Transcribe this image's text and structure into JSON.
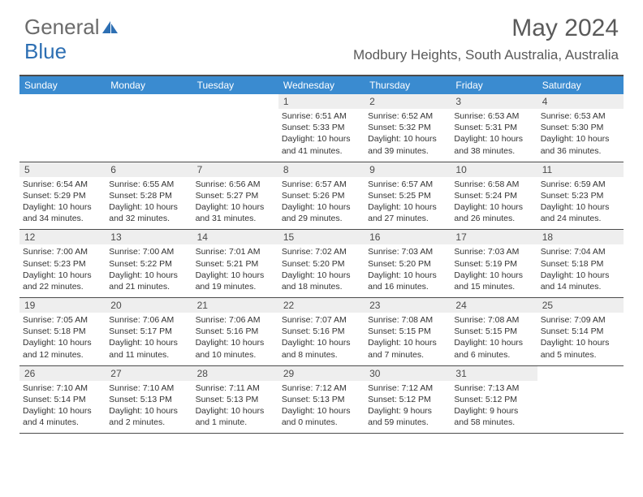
{
  "logo": {
    "text1": "General",
    "text2": "Blue"
  },
  "title": "May 2024",
  "location": "Modbury Heights, South Australia, Australia",
  "colors": {
    "header_band": "#3a8bd0",
    "daynum_bg": "#eeeeee",
    "rule": "#4b4b4b",
    "text": "#333333",
    "title_text": "#5a5a5a",
    "logo_text": "#6b6b6b",
    "logo_accent": "#2d6fb3"
  },
  "day_headers": [
    "Sunday",
    "Monday",
    "Tuesday",
    "Wednesday",
    "Thursday",
    "Friday",
    "Saturday"
  ],
  "weeks": [
    [
      {
        "n": "",
        "sunrise": "",
        "sunset": "",
        "daylight": ""
      },
      {
        "n": "",
        "sunrise": "",
        "sunset": "",
        "daylight": ""
      },
      {
        "n": "",
        "sunrise": "",
        "sunset": "",
        "daylight": ""
      },
      {
        "n": "1",
        "sunrise": "Sunrise: 6:51 AM",
        "sunset": "Sunset: 5:33 PM",
        "daylight": "Daylight: 10 hours and 41 minutes."
      },
      {
        "n": "2",
        "sunrise": "Sunrise: 6:52 AM",
        "sunset": "Sunset: 5:32 PM",
        "daylight": "Daylight: 10 hours and 39 minutes."
      },
      {
        "n": "3",
        "sunrise": "Sunrise: 6:53 AM",
        "sunset": "Sunset: 5:31 PM",
        "daylight": "Daylight: 10 hours and 38 minutes."
      },
      {
        "n": "4",
        "sunrise": "Sunrise: 6:53 AM",
        "sunset": "Sunset: 5:30 PM",
        "daylight": "Daylight: 10 hours and 36 minutes."
      }
    ],
    [
      {
        "n": "5",
        "sunrise": "Sunrise: 6:54 AM",
        "sunset": "Sunset: 5:29 PM",
        "daylight": "Daylight: 10 hours and 34 minutes."
      },
      {
        "n": "6",
        "sunrise": "Sunrise: 6:55 AM",
        "sunset": "Sunset: 5:28 PM",
        "daylight": "Daylight: 10 hours and 32 minutes."
      },
      {
        "n": "7",
        "sunrise": "Sunrise: 6:56 AM",
        "sunset": "Sunset: 5:27 PM",
        "daylight": "Daylight: 10 hours and 31 minutes."
      },
      {
        "n": "8",
        "sunrise": "Sunrise: 6:57 AM",
        "sunset": "Sunset: 5:26 PM",
        "daylight": "Daylight: 10 hours and 29 minutes."
      },
      {
        "n": "9",
        "sunrise": "Sunrise: 6:57 AM",
        "sunset": "Sunset: 5:25 PM",
        "daylight": "Daylight: 10 hours and 27 minutes."
      },
      {
        "n": "10",
        "sunrise": "Sunrise: 6:58 AM",
        "sunset": "Sunset: 5:24 PM",
        "daylight": "Daylight: 10 hours and 26 minutes."
      },
      {
        "n": "11",
        "sunrise": "Sunrise: 6:59 AM",
        "sunset": "Sunset: 5:23 PM",
        "daylight": "Daylight: 10 hours and 24 minutes."
      }
    ],
    [
      {
        "n": "12",
        "sunrise": "Sunrise: 7:00 AM",
        "sunset": "Sunset: 5:23 PM",
        "daylight": "Daylight: 10 hours and 22 minutes."
      },
      {
        "n": "13",
        "sunrise": "Sunrise: 7:00 AM",
        "sunset": "Sunset: 5:22 PM",
        "daylight": "Daylight: 10 hours and 21 minutes."
      },
      {
        "n": "14",
        "sunrise": "Sunrise: 7:01 AM",
        "sunset": "Sunset: 5:21 PM",
        "daylight": "Daylight: 10 hours and 19 minutes."
      },
      {
        "n": "15",
        "sunrise": "Sunrise: 7:02 AM",
        "sunset": "Sunset: 5:20 PM",
        "daylight": "Daylight: 10 hours and 18 minutes."
      },
      {
        "n": "16",
        "sunrise": "Sunrise: 7:03 AM",
        "sunset": "Sunset: 5:20 PM",
        "daylight": "Daylight: 10 hours and 16 minutes."
      },
      {
        "n": "17",
        "sunrise": "Sunrise: 7:03 AM",
        "sunset": "Sunset: 5:19 PM",
        "daylight": "Daylight: 10 hours and 15 minutes."
      },
      {
        "n": "18",
        "sunrise": "Sunrise: 7:04 AM",
        "sunset": "Sunset: 5:18 PM",
        "daylight": "Daylight: 10 hours and 14 minutes."
      }
    ],
    [
      {
        "n": "19",
        "sunrise": "Sunrise: 7:05 AM",
        "sunset": "Sunset: 5:18 PM",
        "daylight": "Daylight: 10 hours and 12 minutes."
      },
      {
        "n": "20",
        "sunrise": "Sunrise: 7:06 AM",
        "sunset": "Sunset: 5:17 PM",
        "daylight": "Daylight: 10 hours and 11 minutes."
      },
      {
        "n": "21",
        "sunrise": "Sunrise: 7:06 AM",
        "sunset": "Sunset: 5:16 PM",
        "daylight": "Daylight: 10 hours and 10 minutes."
      },
      {
        "n": "22",
        "sunrise": "Sunrise: 7:07 AM",
        "sunset": "Sunset: 5:16 PM",
        "daylight": "Daylight: 10 hours and 8 minutes."
      },
      {
        "n": "23",
        "sunrise": "Sunrise: 7:08 AM",
        "sunset": "Sunset: 5:15 PM",
        "daylight": "Daylight: 10 hours and 7 minutes."
      },
      {
        "n": "24",
        "sunrise": "Sunrise: 7:08 AM",
        "sunset": "Sunset: 5:15 PM",
        "daylight": "Daylight: 10 hours and 6 minutes."
      },
      {
        "n": "25",
        "sunrise": "Sunrise: 7:09 AM",
        "sunset": "Sunset: 5:14 PM",
        "daylight": "Daylight: 10 hours and 5 minutes."
      }
    ],
    [
      {
        "n": "26",
        "sunrise": "Sunrise: 7:10 AM",
        "sunset": "Sunset: 5:14 PM",
        "daylight": "Daylight: 10 hours and 4 minutes."
      },
      {
        "n": "27",
        "sunrise": "Sunrise: 7:10 AM",
        "sunset": "Sunset: 5:13 PM",
        "daylight": "Daylight: 10 hours and 2 minutes."
      },
      {
        "n": "28",
        "sunrise": "Sunrise: 7:11 AM",
        "sunset": "Sunset: 5:13 PM",
        "daylight": "Daylight: 10 hours and 1 minute."
      },
      {
        "n": "29",
        "sunrise": "Sunrise: 7:12 AM",
        "sunset": "Sunset: 5:13 PM",
        "daylight": "Daylight: 10 hours and 0 minutes."
      },
      {
        "n": "30",
        "sunrise": "Sunrise: 7:12 AM",
        "sunset": "Sunset: 5:12 PM",
        "daylight": "Daylight: 9 hours and 59 minutes."
      },
      {
        "n": "31",
        "sunrise": "Sunrise: 7:13 AM",
        "sunset": "Sunset: 5:12 PM",
        "daylight": "Daylight: 9 hours and 58 minutes."
      },
      {
        "n": "",
        "sunrise": "",
        "sunset": "",
        "daylight": ""
      }
    ]
  ]
}
